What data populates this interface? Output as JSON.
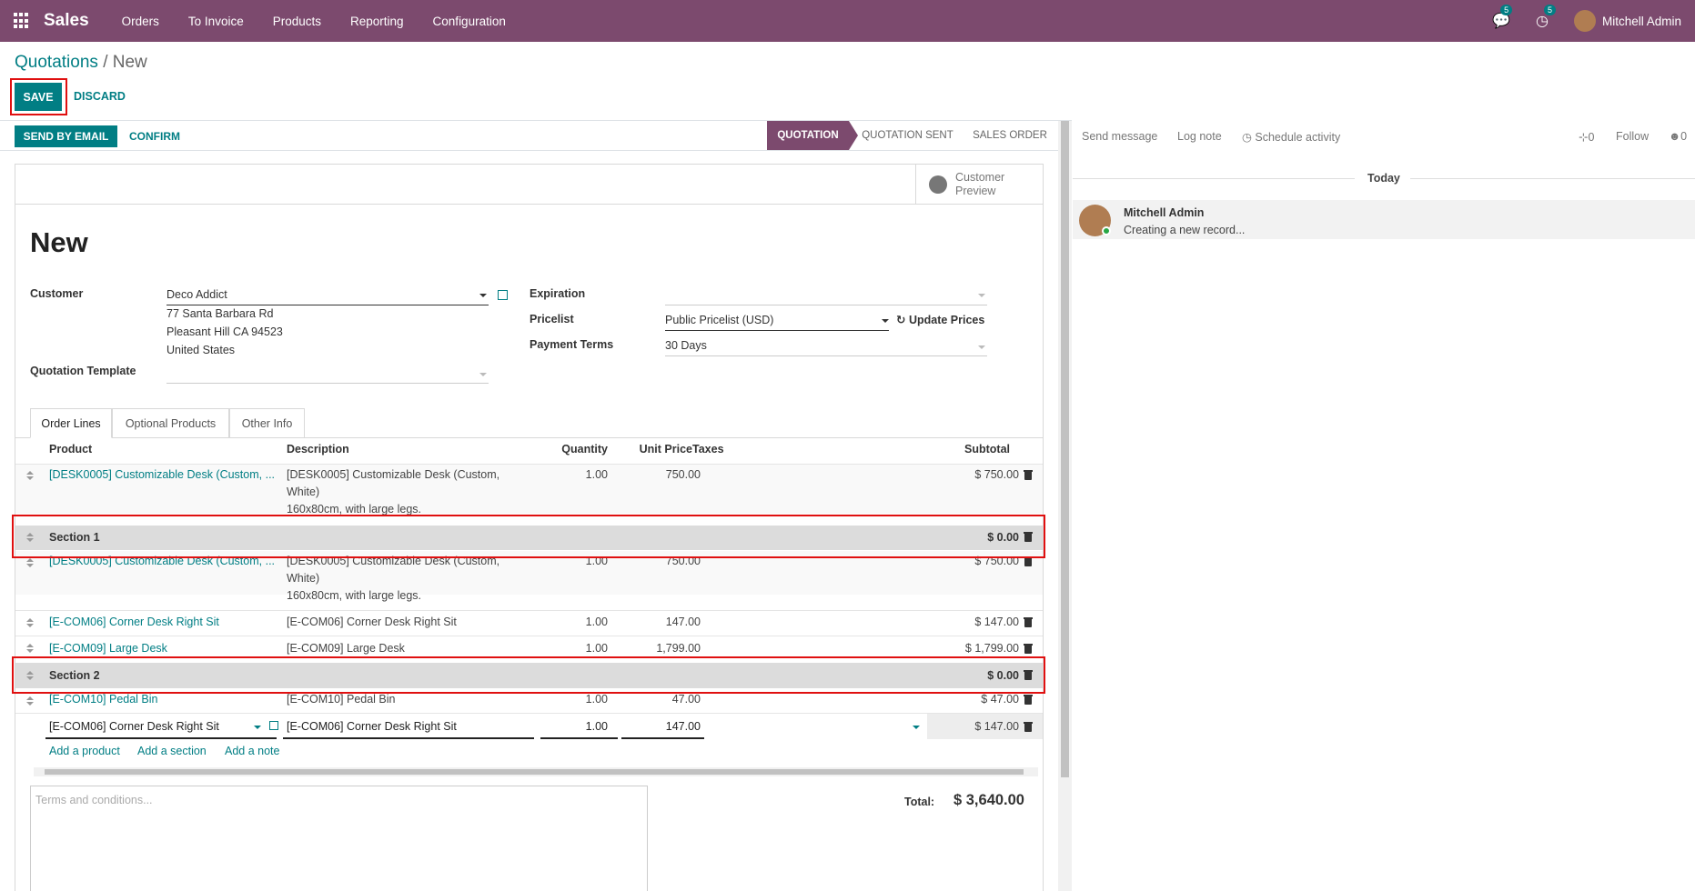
{
  "navbar": {
    "app_name": "Sales",
    "menu": [
      "Orders",
      "To Invoice",
      "Products",
      "Reporting",
      "Configuration"
    ],
    "messages_badge": "5",
    "activities_badge": "5",
    "user_name": "Mitchell Admin"
  },
  "breadcrumb": {
    "parent": "Quotations",
    "separator": "/",
    "current": "New"
  },
  "control": {
    "save_label": "SAVE",
    "discard_label": "DISCARD"
  },
  "statusbar": {
    "send_email_label": "SEND BY EMAIL",
    "confirm_label": "CONFIRM",
    "stages": [
      "QUOTATION",
      "QUOTATION SENT",
      "SALES ORDER"
    ],
    "active_stage": "QUOTATION"
  },
  "button_box": {
    "customer_preview_line1": "Customer",
    "customer_preview_line2": "Preview"
  },
  "record": {
    "title": "New",
    "customer_label": "Customer",
    "customer_value": "Deco Addict",
    "address": [
      "77 Santa Barbara Rd",
      "Pleasant Hill CA 94523",
      "United States"
    ],
    "template_label": "Quotation Template",
    "expiration_label": "Expiration",
    "pricelist_label": "Pricelist",
    "pricelist_value": "Public Pricelist (USD)",
    "update_prices_label": "Update Prices",
    "payment_terms_label": "Payment Terms",
    "payment_terms_value": "30 Days"
  },
  "tabs": [
    "Order Lines",
    "Optional Products",
    "Other Info"
  ],
  "table": {
    "headers": {
      "product": "Product",
      "description": "Description",
      "quantity": "Quantity",
      "unit_price": "Unit Price",
      "taxes": "Taxes",
      "subtotal": "Subtotal"
    },
    "rows": [
      {
        "product": "[DESK0005] Customizable Desk (Custom, ...",
        "desc1": "[DESK0005] Customizable Desk (Custom,",
        "desc2": "White)",
        "desc3": "160x80cm, with large legs.",
        "qty": "1.00",
        "price": "750.00",
        "subtotal": "$ 750.00"
      },
      {
        "section": "Section 1",
        "subtotal": "$ 0.00"
      },
      {
        "product": "[DESK0005] Customizable Desk (Custom, ...",
        "desc1": "[DESK0005] Customizable Desk (Custom,",
        "desc2": "White)",
        "desc3": "160x80cm, with large legs.",
        "qty": "1.00",
        "price": "750.00",
        "subtotal": "$ 750.00"
      },
      {
        "product": "[E-COM06] Corner Desk Right Sit",
        "desc1": "[E-COM06] Corner Desk Right Sit",
        "qty": "1.00",
        "price": "147.00",
        "subtotal": "$ 147.00"
      },
      {
        "product": "[E-COM09] Large Desk",
        "desc1": "[E-COM09] Large Desk",
        "qty": "1.00",
        "price": "1,799.00",
        "subtotal": "$ 1,799.00"
      },
      {
        "section": "Section 2",
        "subtotal": "$ 0.00"
      },
      {
        "product": "[E-COM10] Pedal Bin",
        "desc1": "[E-COM10] Pedal Bin",
        "qty": "1.00",
        "price": "47.00",
        "subtotal": "$ 47.00"
      },
      {
        "product": "[E-COM06] Corner Desk Right Sit",
        "desc1": "[E-COM06] Corner Desk Right Sit",
        "qty": "1.00",
        "price": "147.00",
        "subtotal": "$ 147.00"
      }
    ],
    "add_product": "Add a product",
    "add_section": "Add a section",
    "add_note": "Add a note"
  },
  "footer": {
    "terms_placeholder": "Terms and conditions...",
    "total_label": "Total:",
    "total_value": "$ 3,640.00"
  },
  "chatter": {
    "send_message": "Send message",
    "log_note": "Log note",
    "schedule_activity": "Schedule activity",
    "attachments_count": "0",
    "follow": "Follow",
    "followers_count": "0",
    "today": "Today",
    "message_author": "Mitchell Admin",
    "message_body": "Creating a new record..."
  },
  "colors": {
    "navbar": "#7c4a6e",
    "accent": "#017e84",
    "highlight": "#e01010"
  }
}
